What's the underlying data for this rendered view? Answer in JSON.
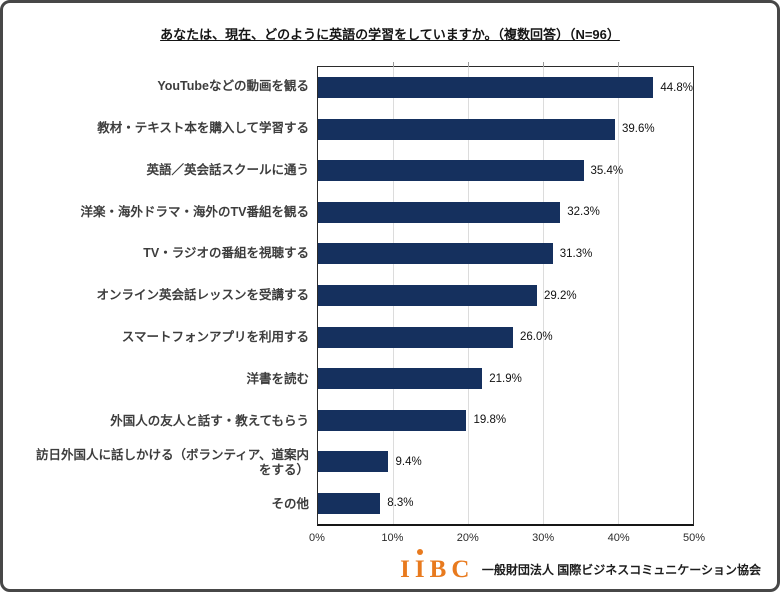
{
  "title": "あなたは、現在、どのように英語の学習をしていますか。（複数回答）（N=96）",
  "chart_data": {
    "type": "bar",
    "orientation": "horizontal",
    "title": "あなたは、現在、どのように英語の学習をしていますか。（複数回答）（N=96）",
    "n": 96,
    "categories": [
      "YouTubeなどの動画を観る",
      "教材・テキスト本を購入して学習する",
      "英語／英会話スクールに通う",
      "洋楽・海外ドラマ・海外のTV番組を観る",
      "TV・ラジオの番組を視聴する",
      "オンライン英会話レッスンを受講する",
      "スマートフォンアプリを利用する",
      "洋書を読む",
      "外国人の友人と話す・教えてもらう",
      "訪日外国人に話しかける（ボランティア、道案内をする）",
      "その他"
    ],
    "values": [
      44.8,
      39.6,
      35.4,
      32.3,
      31.3,
      29.2,
      26.0,
      21.9,
      19.8,
      9.4,
      8.3
    ],
    "value_labels": [
      "44.8%",
      "39.6%",
      "35.4%",
      "32.3%",
      "31.3%",
      "29.2%",
      "26.0%",
      "21.9%",
      "19.8%",
      "9.4%",
      "8.3%"
    ],
    "xlabel": "",
    "ylabel": "",
    "xlim": [
      0,
      50
    ],
    "x_ticks": [
      "0%",
      "10%",
      "20%",
      "30%",
      "40%",
      "50%"
    ],
    "x_tick_values": [
      0,
      10,
      20,
      30,
      40,
      50
    ],
    "grid": "vertical-only",
    "legend": "none",
    "bar_color": "#15305e"
  },
  "footer": {
    "logo_text": "IIBC",
    "org_name": "一般財団法人 国際ビジネスコミュニケーション協会",
    "logo_color": "#e87a1e"
  },
  "colors": {
    "bar": "#15305e",
    "gridline": "#dcdcdc",
    "plot_border": "#2b2b2b",
    "outer_border": "#474747",
    "logo_orange": "#e87a1e",
    "background": "#ffffff"
  }
}
